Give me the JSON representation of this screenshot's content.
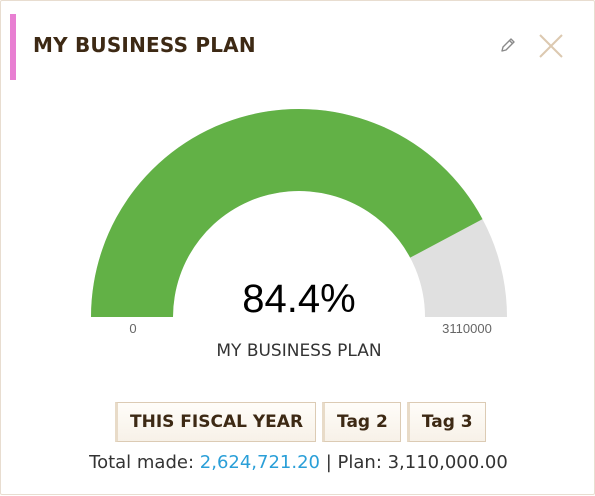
{
  "header": {
    "title": "MY BUSINESS PLAN",
    "accent_color": "#e87fd2",
    "edit_icon": "pencil-icon",
    "close_icon": "close-icon"
  },
  "gauge": {
    "percent_text": "84.4%",
    "min_label": "0",
    "max_label": "3110000",
    "label": "MY BUSINESS PLAN",
    "fill_color": "#62b146",
    "track_color": "#e0e0e0"
  },
  "chart_data": {
    "type": "gauge",
    "value": 2624721.2,
    "min": 0,
    "max": 3110000,
    "percent": 84.4
  },
  "tags": [
    {
      "label": "THIS FISCAL YEAR"
    },
    {
      "label": "Tag 2"
    },
    {
      "label": "Tag 3"
    }
  ],
  "summary": {
    "made_prefix": "Total made:",
    "made_value": "2,624,721.20",
    "plan_text": "| Plan: 3,110,000.00",
    "made_color": "#2a9fd8"
  }
}
